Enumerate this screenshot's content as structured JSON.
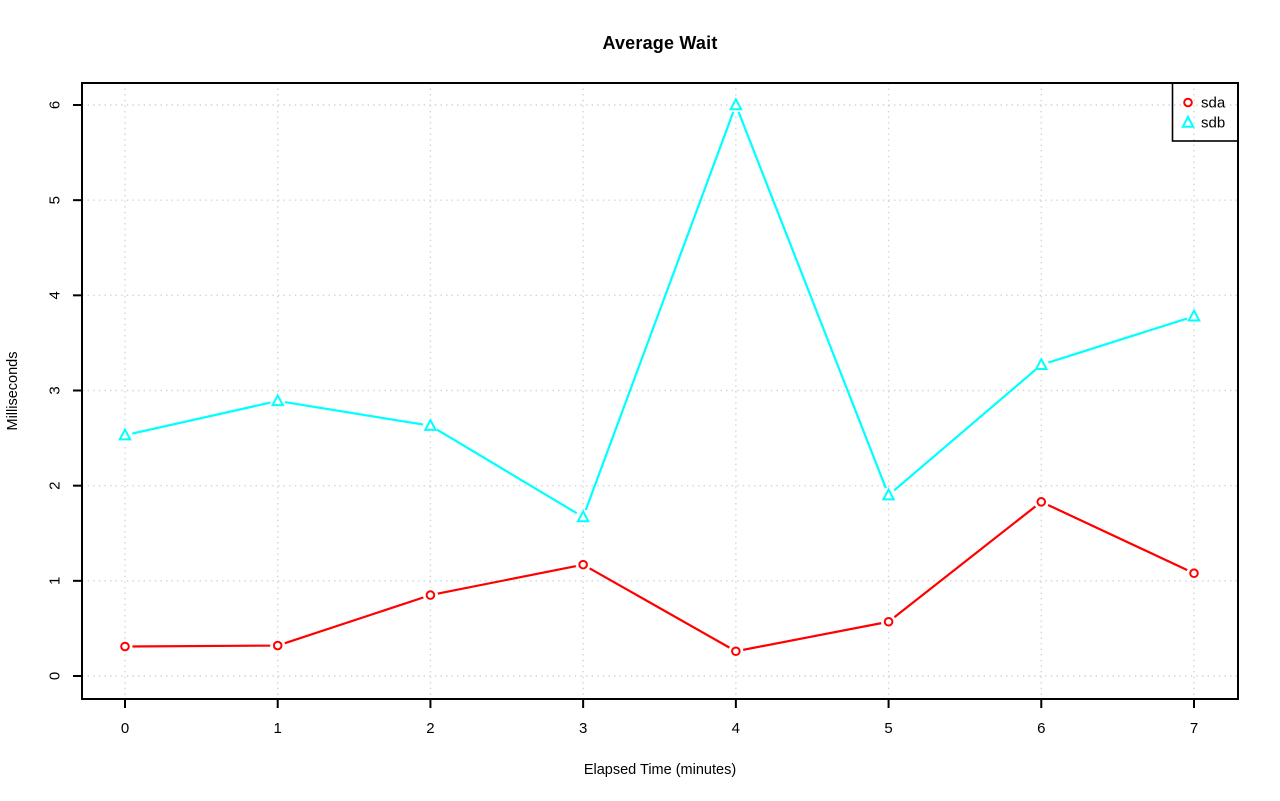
{
  "page": {
    "background": "#ffffff",
    "axis_color": "#000000",
    "gridline_color": "#d3d3d3"
  },
  "chart_data": {
    "type": "line",
    "title": "Average Wait",
    "xlabel": "Elapsed Time (minutes)",
    "ylabel": "Milliseconds",
    "x": [
      0,
      1,
      2,
      3,
      4,
      5,
      6,
      7
    ],
    "x_tick_labels": [
      "0",
      "1",
      "2",
      "3",
      "4",
      "5",
      "6",
      "7"
    ],
    "y_ticks": [
      0,
      1,
      2,
      3,
      4,
      5,
      6
    ],
    "y_tick_labels": [
      "0",
      "1",
      "2",
      "3",
      "4",
      "5",
      "6"
    ],
    "xlim": [
      0,
      7
    ],
    "ylim": [
      0,
      6
    ],
    "grid": "dotted",
    "legend_position": "top-right",
    "series": [
      {
        "name": "sda",
        "color": "#ff0000",
        "marker": "circle",
        "values": [
          0.31,
          0.32,
          0.85,
          1.17,
          0.26,
          0.57,
          1.83,
          1.08
        ]
      },
      {
        "name": "sdb",
        "color": "#00ffff",
        "marker": "triangle",
        "values": [
          2.53,
          2.89,
          2.63,
          1.67,
          6.0,
          1.9,
          3.27,
          3.78
        ]
      }
    ]
  }
}
